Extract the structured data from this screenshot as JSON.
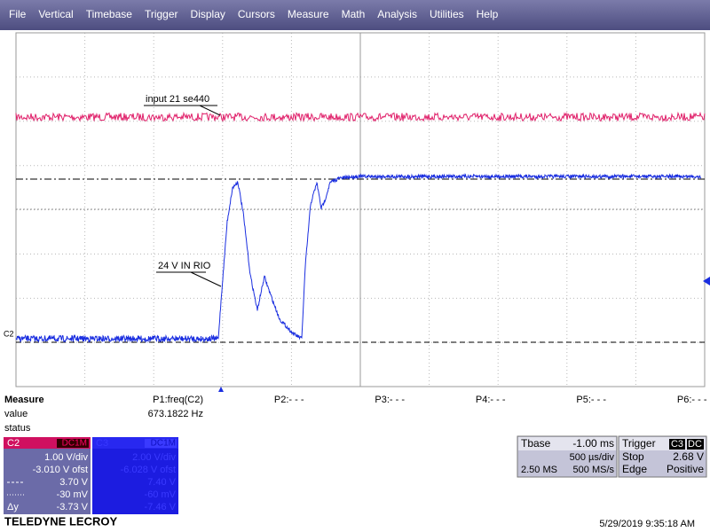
{
  "menu": [
    "File",
    "Vertical",
    "Timebase",
    "Trigger",
    "Display",
    "Cursors",
    "Measure",
    "Math",
    "Analysis",
    "Utilities",
    "Help"
  ],
  "traces": {
    "c3_label": "input 21 se440",
    "c2_label": "24 V IN RIO",
    "c2_marker": "C2"
  },
  "measure": {
    "title": "Measure",
    "params": [
      "P1:freq(C2)",
      "P2:- - -",
      "P3:- - -",
      "P4:- - -",
      "P5:- - -",
      "P6:- - -"
    ],
    "value_label": "value",
    "value": "673.1822 Hz",
    "status_label": "status"
  },
  "c2": {
    "name": "C2",
    "coupling": "DC1M",
    "vdiv": "1.00 V/div",
    "offset": "-3.010 V ofst",
    "cursor1": "3.70 V",
    "cursor2": "-30 mV",
    "delta_label": "Δy",
    "delta": "-3.73 V"
  },
  "c3": {
    "name": "C3",
    "coupling": "DC1M",
    "vdiv": "2.00 V/div",
    "offset": "-6.028 V ofst",
    "cursor1": "7.40 V",
    "cursor2": "-60 mV",
    "delta": "-7.46 V"
  },
  "timebase": {
    "title": "Tbase",
    "delay": "-1.00 ms",
    "tdiv": "500 µs/div",
    "samples": "2.50 MS",
    "rate": "500 MS/s"
  },
  "trigger": {
    "title": "Trigger",
    "source": "C3",
    "coupling": "DC",
    "mode": "Stop",
    "level": "2.68 V",
    "type": "Edge",
    "slope": "Positive"
  },
  "footer": {
    "brand": "TELEDYNE LECROY",
    "timestamp": "5/29/2019 9:35:18 AM"
  }
}
